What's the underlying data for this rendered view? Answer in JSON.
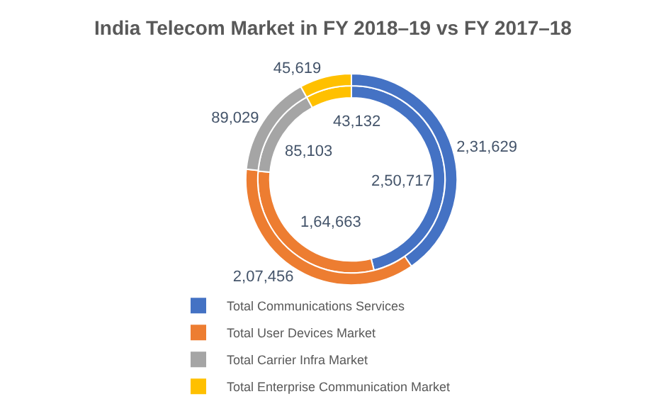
{
  "chart_data": {
    "type": "donut",
    "title": "India Telecom Market in FY 2018–19 vs FY 2017–18",
    "categories": [
      "Total Communications Services",
      "Total User Devices Market",
      "Total Carrier Infra Market",
      "Total Enterprise Communication Market"
    ],
    "colors": [
      "#4472c4",
      "#ed7d31",
      "#a5a5a5",
      "#ffc000"
    ],
    "series": [
      {
        "values": [
          250717,
          164663,
          85103,
          43132
        ],
        "value_labels": [
          "2,50,717",
          "1,64,663",
          "85,103",
          "43,132"
        ]
      },
      {
        "values": [
          231629,
          207456,
          89029,
          45619
        ],
        "value_labels": [
          "2,31,629",
          "2,07,456",
          "89,029",
          "45,619"
        ]
      }
    ],
    "legend": "bottom"
  }
}
